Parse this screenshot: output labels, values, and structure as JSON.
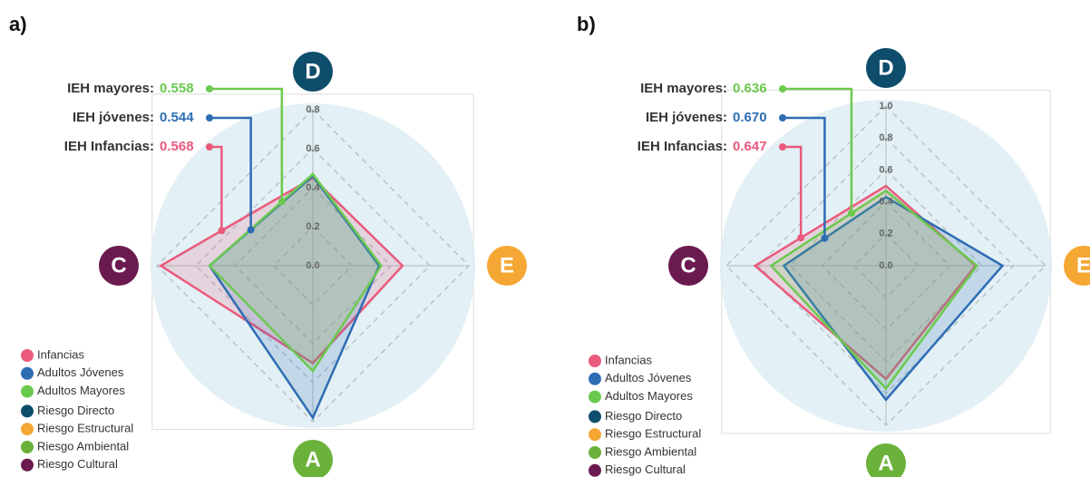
{
  "chart_data": [
    {
      "type": "radar",
      "panel_label": "a)",
      "axes": [
        {
          "letter": "D",
          "name": "Riesgo Directo",
          "color": "#0e4d6b"
        },
        {
          "letter": "E",
          "name": "Riesgo Estructural",
          "color": "#f5a734"
        },
        {
          "letter": "A",
          "name": "Riesgo Ambiental",
          "color": "#6ab23a"
        },
        {
          "letter": "C",
          "name": "Riesgo Cultural",
          "color": "#6b1a4f"
        }
      ],
      "rlim": [
        0,
        0.8
      ],
      "rticks": [
        {
          "value": 0,
          "label": "0.0"
        },
        0.2,
        0.4,
        0.6,
        0.8
      ],
      "series": [
        {
          "name": "Infancias",
          "color": "#ea5a7c",
          "values": [
            0.45,
            0.46,
            0.5,
            0.78
          ]
        },
        {
          "name": "Adultos Jóvenes",
          "color": "#2e6db4",
          "values": [
            0.46,
            0.34,
            0.78,
            0.53
          ]
        },
        {
          "name": "Adultos Mayores",
          "color": "#6cc94f",
          "values": [
            0.47,
            0.35,
            0.54,
            0.53
          ]
        }
      ],
      "annotations": [
        {
          "label": "IEH Infancias:",
          "value": 0.568
        },
        {
          "label": "IEH jóvenes:",
          "value": 0.544
        },
        {
          "label": "IEH mayores:",
          "value": 0.558
        }
      ]
    },
    {
      "type": "radar",
      "panel_label": "b)",
      "axes": [
        {
          "letter": "D",
          "name": "Riesgo Directo",
          "color": "#0e4d6b"
        },
        {
          "letter": "E",
          "name": "Riesgo Estructural",
          "color": "#f5a734"
        },
        {
          "letter": "A",
          "name": "Riesgo Ambiental",
          "color": "#6ab23a"
        },
        {
          "letter": "C",
          "name": "Riesgo Cultural",
          "color": "#6b1a4f"
        }
      ],
      "rlim": [
        0,
        1
      ],
      "rticks": [
        {
          "value": 0,
          "label": "0.0"
        },
        0.2,
        0.4,
        0.6,
        0.8,
        {
          "value": 1,
          "label": "1.0"
        }
      ],
      "series": [
        {
          "name": "Infancias",
          "color": "#ea5a7c",
          "values": [
            0.5,
            0.56,
            0.71,
            0.82
          ]
        },
        {
          "name": "Adultos Jóvenes",
          "color": "#2e6db4",
          "values": [
            0.43,
            0.73,
            0.84,
            0.64
          ]
        },
        {
          "name": "Adultos Mayores",
          "color": "#6cc94f",
          "values": [
            0.47,
            0.57,
            0.77,
            0.72
          ]
        }
      ],
      "annotations": [
        {
          "label": "IEH Infancias:",
          "value": 0.647
        },
        {
          "label": "IEH jóvenes:",
          "value": 0.67,
          "value_label": "0.670"
        },
        {
          "label": "IEH mayores:",
          "value": 0.636
        }
      ]
    }
  ]
}
